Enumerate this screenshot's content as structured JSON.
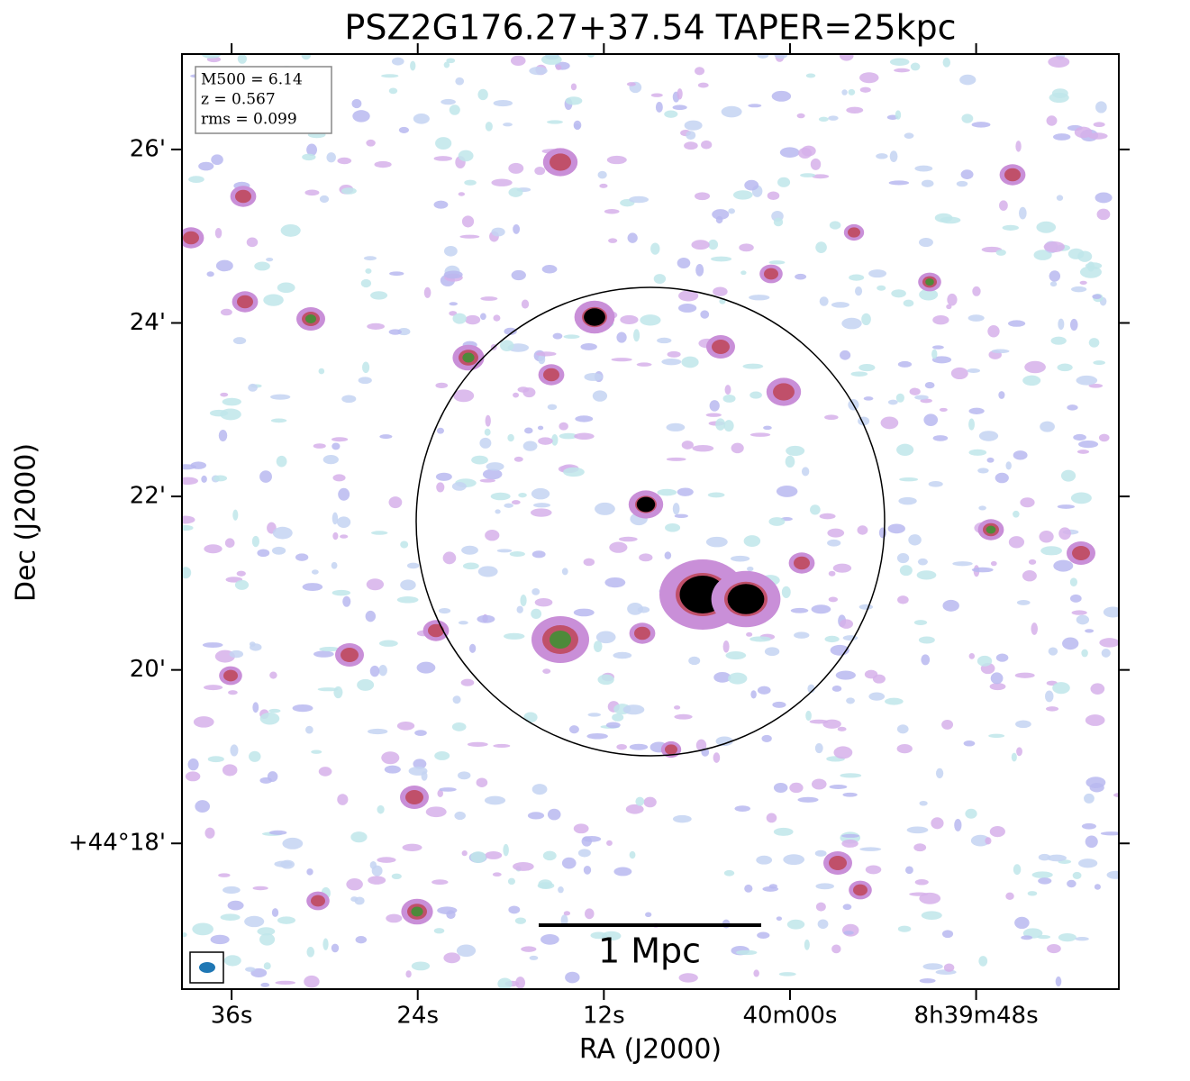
{
  "chart_data": {
    "type": "image",
    "title": "PSZ2G176.27+37.54 TAPER=25kpc",
    "xlabel": "RA (J2000)",
    "ylabel": "Dec (J2000)",
    "xlim": [
      39.2,
      -21.2
    ],
    "xticks": [
      {
        "value": 36,
        "label": "36s"
      },
      {
        "value": 24,
        "label": "24s"
      },
      {
        "value": 12,
        "label": "12s"
      },
      {
        "value": 0,
        "label": "40m00s"
      },
      {
        "value": -12,
        "label": "8h39m48s"
      }
    ],
    "ylim": [
      16.32,
      27.1
    ],
    "yticks": [
      {
        "value": 26,
        "label": "26'"
      },
      {
        "value": 24,
        "label": "24'"
      },
      {
        "value": 22,
        "label": "22'"
      },
      {
        "value": 20,
        "label": "20'"
      },
      {
        "value": 18,
        "label": "+44°18'"
      }
    ],
    "info": [
      "M500 = 6.14",
      "z = 0.567",
      "rms = 0.099"
    ],
    "scalebar_label": "1 Mpc"
  }
}
